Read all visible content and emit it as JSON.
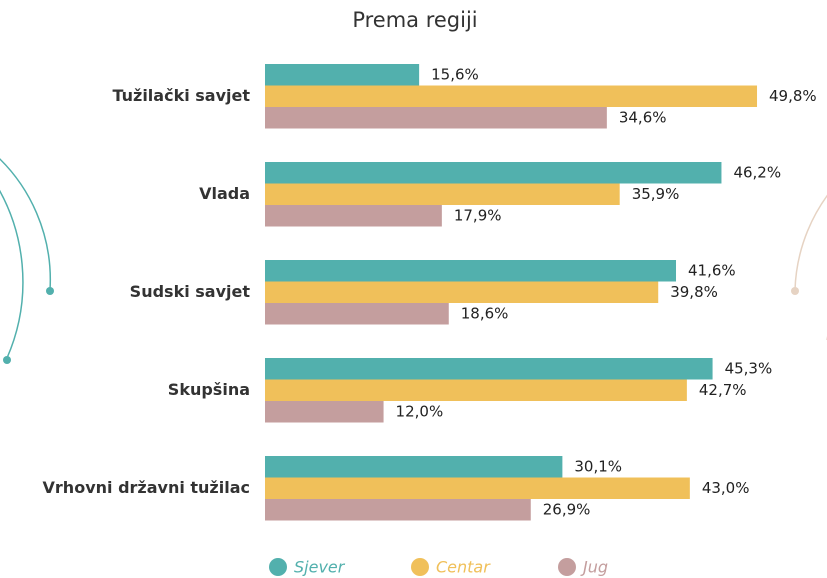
{
  "chart_data": {
    "type": "hbar",
    "title": "Prema regiji",
    "categories": [
      "Tužilački savjet",
      "Vlada",
      "Sudski savjet",
      "Skupšina",
      "Vrhovni državni tužilac"
    ],
    "series": [
      {
        "name": "Sjever",
        "color": "#52b0ad",
        "values": [
          15.6,
          46.2,
          41.6,
          45.3,
          30.1
        ],
        "value_labels": [
          "15,6%",
          "46,2%",
          "41,6%",
          "45,3%",
          "30,1%"
        ]
      },
      {
        "name": "Centar",
        "color": "#f0c05a",
        "values": [
          49.8,
          35.9,
          39.8,
          42.7,
          43.0
        ],
        "value_labels": [
          "49,8%",
          "35,9%",
          "39,8%",
          "42,7%",
          "43,0%"
        ]
      },
      {
        "name": "Jug",
        "color": "#c49e9e",
        "values": [
          34.6,
          17.9,
          18.6,
          12.0,
          26.9
        ],
        "value_labels": [
          "34,6%",
          "17,9%",
          "18,6%",
          "12,0%",
          "26,9%"
        ]
      }
    ]
  }
}
